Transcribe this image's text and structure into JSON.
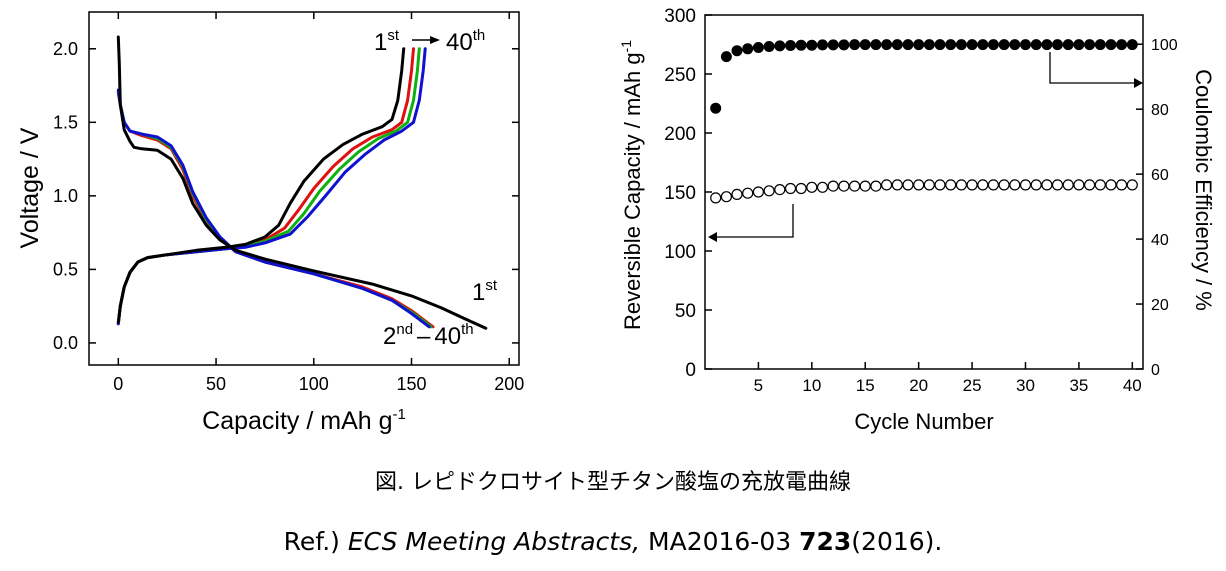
{
  "caption": "図. レピドクロサイト型チタン酸塩の充放電曲線",
  "reference": {
    "prefix": "Ref.)",
    "journal": "ECS Meeting Abstracts,",
    "issue": "MA2016-03",
    "page": "723",
    "year": "(2016)."
  },
  "chart_data": [
    {
      "type": "line",
      "xlabel": "Capacity / mAh g-1",
      "ylabel": "Voltage / V",
      "xlim": [
        -15,
        205
      ],
      "ylim": [
        -0.15,
        2.25
      ],
      "xticks": [
        0,
        50,
        100,
        150,
        200
      ],
      "yticks": [
        0.0,
        0.5,
        1.0,
        1.5,
        2.0
      ],
      "grid": false,
      "annotations": {
        "top": {
          "n1": "1",
          "s1": "st",
          "n2": "40",
          "s2": "th"
        },
        "first": {
          "n": "1",
          "s": "st"
        },
        "rest": {
          "n1": "2",
          "s1": "nd",
          "sep": "–",
          "n2": "40",
          "s2": "th"
        }
      },
      "series": [
        {
          "color": "#000000",
          "discharge": [
            [
              0,
              2.08
            ],
            [
              0.5,
              1.9
            ],
            [
              1,
              1.62
            ],
            [
              3,
              1.45
            ],
            [
              6,
              1.37
            ],
            [
              8,
              1.33
            ],
            [
              12,
              1.32
            ],
            [
              20,
              1.31
            ],
            [
              27,
              1.25
            ],
            [
              33,
              1.12
            ],
            [
              38,
              0.95
            ],
            [
              45,
              0.8
            ],
            [
              52,
              0.7
            ],
            [
              60,
              0.63
            ],
            [
              75,
              0.57
            ],
            [
              100,
              0.49
            ],
            [
              130,
              0.4
            ],
            [
              150,
              0.32
            ],
            [
              165,
              0.24
            ],
            [
              178,
              0.16
            ],
            [
              188,
              0.1
            ]
          ],
          "charge": [
            [
              0,
              0.14
            ],
            [
              1,
              0.25
            ],
            [
              3,
              0.38
            ],
            [
              6,
              0.48
            ],
            [
              10,
              0.55
            ],
            [
              15,
              0.58
            ],
            [
              25,
              0.6
            ],
            [
              40,
              0.63
            ],
            [
              55,
              0.65
            ],
            [
              65,
              0.67
            ],
            [
              75,
              0.72
            ],
            [
              82,
              0.8
            ],
            [
              88,
              0.95
            ],
            [
              95,
              1.1
            ],
            [
              105,
              1.25
            ],
            [
              115,
              1.35
            ],
            [
              125,
              1.42
            ],
            [
              135,
              1.47
            ],
            [
              140,
              1.52
            ],
            [
              143,
              1.65
            ],
            [
              145,
              1.85
            ],
            [
              146,
              2.0
            ]
          ]
        },
        {
          "color": "#e01010",
          "discharge": [
            [
              0,
              1.7
            ],
            [
              1,
              1.62
            ],
            [
              3,
              1.5
            ],
            [
              6,
              1.44
            ],
            [
              12,
              1.41
            ],
            [
              20,
              1.38
            ],
            [
              27,
              1.32
            ],
            [
              33,
              1.18
            ],
            [
              38,
              1.0
            ],
            [
              45,
              0.83
            ],
            [
              52,
              0.71
            ],
            [
              60,
              0.62
            ],
            [
              75,
              0.55
            ],
            [
              100,
              0.47
            ],
            [
              125,
              0.38
            ],
            [
              140,
              0.3
            ],
            [
              150,
              0.22
            ],
            [
              157,
              0.15
            ],
            [
              161,
              0.11
            ]
          ],
          "charge": [
            [
              0,
              0.13
            ],
            [
              1,
              0.25
            ],
            [
              3,
              0.38
            ],
            [
              6,
              0.48
            ],
            [
              10,
              0.55
            ],
            [
              15,
              0.58
            ],
            [
              25,
              0.6
            ],
            [
              40,
              0.62
            ],
            [
              55,
              0.64
            ],
            [
              65,
              0.66
            ],
            [
              75,
              0.7
            ],
            [
              85,
              0.78
            ],
            [
              92,
              0.9
            ],
            [
              100,
              1.05
            ],
            [
              110,
              1.2
            ],
            [
              120,
              1.32
            ],
            [
              130,
              1.4
            ],
            [
              140,
              1.45
            ],
            [
              145,
              1.5
            ],
            [
              148,
              1.65
            ],
            [
              150,
              1.85
            ],
            [
              151,
              2.0
            ]
          ]
        },
        {
          "color": "#10b010",
          "discharge": [
            [
              0,
              1.71
            ],
            [
              1,
              1.62
            ],
            [
              3,
              1.5
            ],
            [
              6,
              1.44
            ],
            [
              12,
              1.42
            ],
            [
              20,
              1.39
            ],
            [
              27,
              1.33
            ],
            [
              33,
              1.2
            ],
            [
              38,
              1.02
            ],
            [
              45,
              0.84
            ],
            [
              52,
              0.72
            ],
            [
              60,
              0.62
            ],
            [
              75,
              0.55
            ],
            [
              100,
              0.47
            ],
            [
              125,
              0.37
            ],
            [
              140,
              0.29
            ],
            [
              150,
              0.21
            ],
            [
              157,
              0.14
            ],
            [
              160,
              0.11
            ]
          ],
          "charge": [
            [
              0,
              0.13
            ],
            [
              1,
              0.25
            ],
            [
              3,
              0.38
            ],
            [
              6,
              0.48
            ],
            [
              10,
              0.55
            ],
            [
              15,
              0.58
            ],
            [
              25,
              0.6
            ],
            [
              40,
              0.62
            ],
            [
              55,
              0.64
            ],
            [
              65,
              0.66
            ],
            [
              75,
              0.69
            ],
            [
              87,
              0.76
            ],
            [
              95,
              0.88
            ],
            [
              103,
              1.03
            ],
            [
              113,
              1.18
            ],
            [
              123,
              1.3
            ],
            [
              133,
              1.39
            ],
            [
              142,
              1.44
            ],
            [
              148,
              1.5
            ],
            [
              151,
              1.65
            ],
            [
              153,
              1.85
            ],
            [
              154,
              2.0
            ]
          ]
        },
        {
          "color": "#1010d0",
          "discharge": [
            [
              0,
              1.72
            ],
            [
              1,
              1.62
            ],
            [
              3,
              1.5
            ],
            [
              6,
              1.44
            ],
            [
              12,
              1.42
            ],
            [
              20,
              1.4
            ],
            [
              27,
              1.34
            ],
            [
              33,
              1.21
            ],
            [
              38,
              1.03
            ],
            [
              45,
              0.85
            ],
            [
              52,
              0.72
            ],
            [
              60,
              0.62
            ],
            [
              75,
              0.55
            ],
            [
              100,
              0.47
            ],
            [
              125,
              0.37
            ],
            [
              140,
              0.29
            ],
            [
              150,
              0.2
            ],
            [
              156,
              0.14
            ],
            [
              159,
              0.11
            ]
          ],
          "charge": [
            [
              0,
              0.13
            ],
            [
              1,
              0.25
            ],
            [
              3,
              0.38
            ],
            [
              6,
              0.48
            ],
            [
              10,
              0.55
            ],
            [
              15,
              0.58
            ],
            [
              25,
              0.6
            ],
            [
              40,
              0.62
            ],
            [
              55,
              0.64
            ],
            [
              65,
              0.65
            ],
            [
              75,
              0.68
            ],
            [
              88,
              0.74
            ],
            [
              97,
              0.86
            ],
            [
              106,
              1.0
            ],
            [
              116,
              1.16
            ],
            [
              126,
              1.28
            ],
            [
              136,
              1.38
            ],
            [
              145,
              1.44
            ],
            [
              151,
              1.5
            ],
            [
              154,
              1.65
            ],
            [
              156,
              1.85
            ],
            [
              157,
              2.0
            ]
          ]
        }
      ]
    },
    {
      "type": "scatter",
      "xlabel": "Cycle Number",
      "ylabel": "Reversible Capacity / mAh g-1",
      "y2label": "Coulombic Efficiency / %",
      "xlim": [
        0,
        41
      ],
      "ylim": [
        0,
        300
      ],
      "y2lim": [
        0,
        109
      ],
      "xticks": [
        5,
        10,
        15,
        20,
        25,
        30,
        35,
        40
      ],
      "yticks": [
        0,
        50,
        100,
        150,
        200,
        250,
        300
      ],
      "y2ticks": [
        0,
        20,
        40,
        60,
        80,
        100
      ],
      "grid": false,
      "series": [
        {
          "axis": "right",
          "marker": "filled-circle",
          "x": [
            1,
            2,
            3,
            4,
            5,
            6,
            7,
            8,
            9,
            10,
            11,
            12,
            13,
            14,
            15,
            16,
            17,
            18,
            19,
            20,
            21,
            22,
            23,
            24,
            25,
            26,
            27,
            28,
            29,
            30,
            31,
            32,
            33,
            34,
            35,
            36,
            37,
            38,
            39,
            40
          ],
          "values": [
            80.3,
            96.2,
            98.0,
            98.6,
            99.0,
            99.3,
            99.5,
            99.6,
            99.7,
            99.7,
            99.8,
            99.8,
            99.8,
            99.9,
            99.9,
            99.9,
            99.9,
            99.9,
            99.9,
            99.9,
            99.9,
            99.9,
            99.9,
            99.9,
            99.9,
            99.9,
            99.9,
            99.9,
            99.9,
            99.9,
            99.9,
            99.9,
            99.9,
            99.9,
            99.9,
            99.9,
            99.9,
            99.9,
            99.9,
            99.9
          ]
        },
        {
          "axis": "left",
          "marker": "open-circle",
          "x": [
            1,
            2,
            3,
            4,
            5,
            6,
            7,
            8,
            9,
            10,
            11,
            12,
            13,
            14,
            15,
            16,
            17,
            18,
            19,
            20,
            21,
            22,
            23,
            24,
            25,
            26,
            27,
            28,
            29,
            30,
            31,
            32,
            33,
            34,
            35,
            36,
            37,
            38,
            39,
            40
          ],
          "values": [
            145,
            146,
            148,
            149,
            150,
            151,
            152,
            153,
            153,
            154,
            154,
            155,
            155,
            155,
            155,
            155,
            156,
            156,
            156,
            156,
            156,
            156,
            156,
            156,
            156,
            156,
            156,
            156,
            156,
            156,
            156,
            156,
            156,
            156,
            156,
            156,
            156,
            156,
            156,
            156
          ]
        }
      ]
    }
  ]
}
